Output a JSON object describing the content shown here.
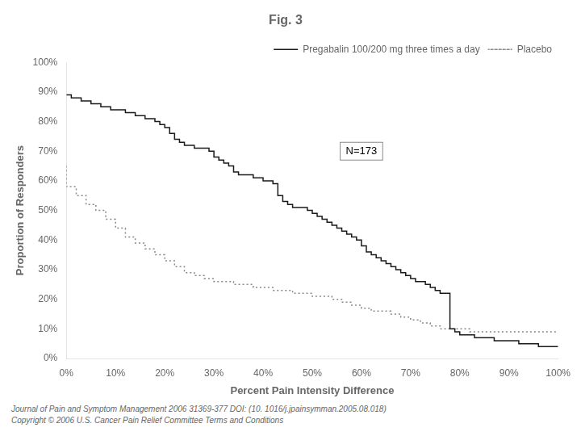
{
  "chart_data": {
    "type": "line",
    "title": "Fig. 3",
    "xlabel": "Percent Pain Intensity Difference",
    "ylabel": "Proportion of Responders",
    "annotation": "N=173",
    "footnotes": [
      "Journal of Pain and Symptom Management 2006 31369-377 DOI: (10. 1016/j.jpainsymman.2005.08.018)",
      "Copyright © 2006 U.S. Cancer Pain Relief Committee Terms and Conditions"
    ],
    "series": [
      {
        "name": "Pregabalin 100/200 mg three times a day",
        "color": "#1a1a1a",
        "line_style": "solid",
        "x": [
          0,
          1,
          2,
          3,
          4,
          5,
          6,
          7,
          8,
          9,
          10,
          11,
          12,
          13,
          14,
          15,
          16,
          17,
          18,
          19,
          20,
          21,
          22,
          23,
          24,
          25,
          26,
          27,
          28,
          29,
          30,
          31,
          32,
          33,
          34,
          35,
          36,
          37,
          38,
          39,
          40,
          41,
          42,
          43,
          44,
          45,
          46,
          47,
          48,
          49,
          50,
          51,
          52,
          53,
          54,
          55,
          56,
          57,
          58,
          59,
          60,
          61,
          62,
          63,
          64,
          65,
          66,
          67,
          68,
          69,
          70,
          71,
          72,
          73,
          74,
          75,
          76,
          77,
          78,
          79,
          80,
          81,
          82,
          83,
          84,
          85,
          86,
          87,
          88,
          89,
          90,
          91,
          92,
          93,
          94,
          95,
          96,
          97,
          98,
          99,
          100
        ],
        "values": [
          89,
          89,
          88,
          88,
          87,
          87,
          86,
          86,
          85,
          85,
          84,
          84,
          84,
          83,
          83,
          82,
          82,
          81,
          81,
          80,
          79,
          78,
          76,
          74,
          73,
          72,
          72,
          71,
          71,
          71,
          70,
          68,
          67,
          66,
          65,
          63,
          62,
          62,
          62,
          61,
          61,
          60,
          60,
          59,
          55,
          53,
          52,
          51,
          51,
          51,
          50,
          49,
          48,
          47,
          46,
          45,
          44,
          43,
          42,
          41,
          40,
          38,
          36,
          35,
          34,
          33,
          32,
          31,
          30,
          29,
          28,
          27,
          26,
          26,
          25,
          24,
          23,
          22,
          22,
          10,
          9,
          8,
          8,
          8,
          7,
          7,
          7,
          7,
          6,
          6,
          6,
          6,
          6,
          5,
          5,
          5,
          5,
          4,
          4,
          4,
          4
        ]
      },
      {
        "name": "Placebo",
        "color": "#888888",
        "line_style": "dotted",
        "x": [
          0,
          2,
          4,
          6,
          8,
          10,
          12,
          14,
          16,
          18,
          20,
          22,
          24,
          26,
          28,
          30,
          32,
          34,
          36,
          38,
          40,
          42,
          44,
          46,
          48,
          50,
          52,
          54,
          56,
          58,
          60,
          62,
          64,
          66,
          68,
          70,
          72,
          74,
          76,
          78,
          80,
          82,
          84,
          86,
          88,
          90,
          92,
          94,
          96,
          98,
          100
        ],
        "values": [
          65,
          58,
          55,
          52,
          50,
          47,
          44,
          41,
          39,
          37,
          35,
          33,
          31,
          29,
          28,
          27,
          26,
          26,
          25,
          25,
          24,
          24,
          23,
          23,
          22,
          22,
          21,
          21,
          20,
          19,
          18,
          17,
          16,
          16,
          15,
          14,
          13,
          12,
          11,
          10,
          10,
          10,
          9,
          9,
          9,
          9,
          9,
          9,
          9,
          9,
          9
        ]
      }
    ],
    "xlim": [
      0,
      100
    ],
    "xticks": [
      {
        "value": 0,
        "label": "0%"
      },
      {
        "value": 10,
        "label": "10%"
      },
      {
        "value": 20,
        "label": "20%"
      },
      {
        "value": 30,
        "label": "30%"
      },
      {
        "value": 40,
        "label": "40%"
      },
      {
        "value": 50,
        "label": "50%"
      },
      {
        "value": 60,
        "label": "60%"
      },
      {
        "value": 70,
        "label": "70%"
      },
      {
        "value": 80,
        "label": "80%"
      },
      {
        "value": 90,
        "label": "90%"
      },
      {
        "value": 100,
        "label": "100%"
      }
    ],
    "ylim": [
      0,
      100
    ],
    "yticks": [
      {
        "value": 0,
        "label": "0%"
      },
      {
        "value": 10,
        "label": "10%"
      },
      {
        "value": 20,
        "label": "20%"
      },
      {
        "value": 30,
        "label": "30%"
      },
      {
        "value": 40,
        "label": "40%"
      },
      {
        "value": 50,
        "label": "50%"
      },
      {
        "value": 60,
        "label": "60%"
      },
      {
        "value": 70,
        "label": "70%"
      },
      {
        "value": 80,
        "label": "80%"
      },
      {
        "value": 90,
        "label": "90%"
      },
      {
        "value": 100,
        "label": "100%"
      }
    ],
    "grid": false,
    "legend": "upper right"
  }
}
